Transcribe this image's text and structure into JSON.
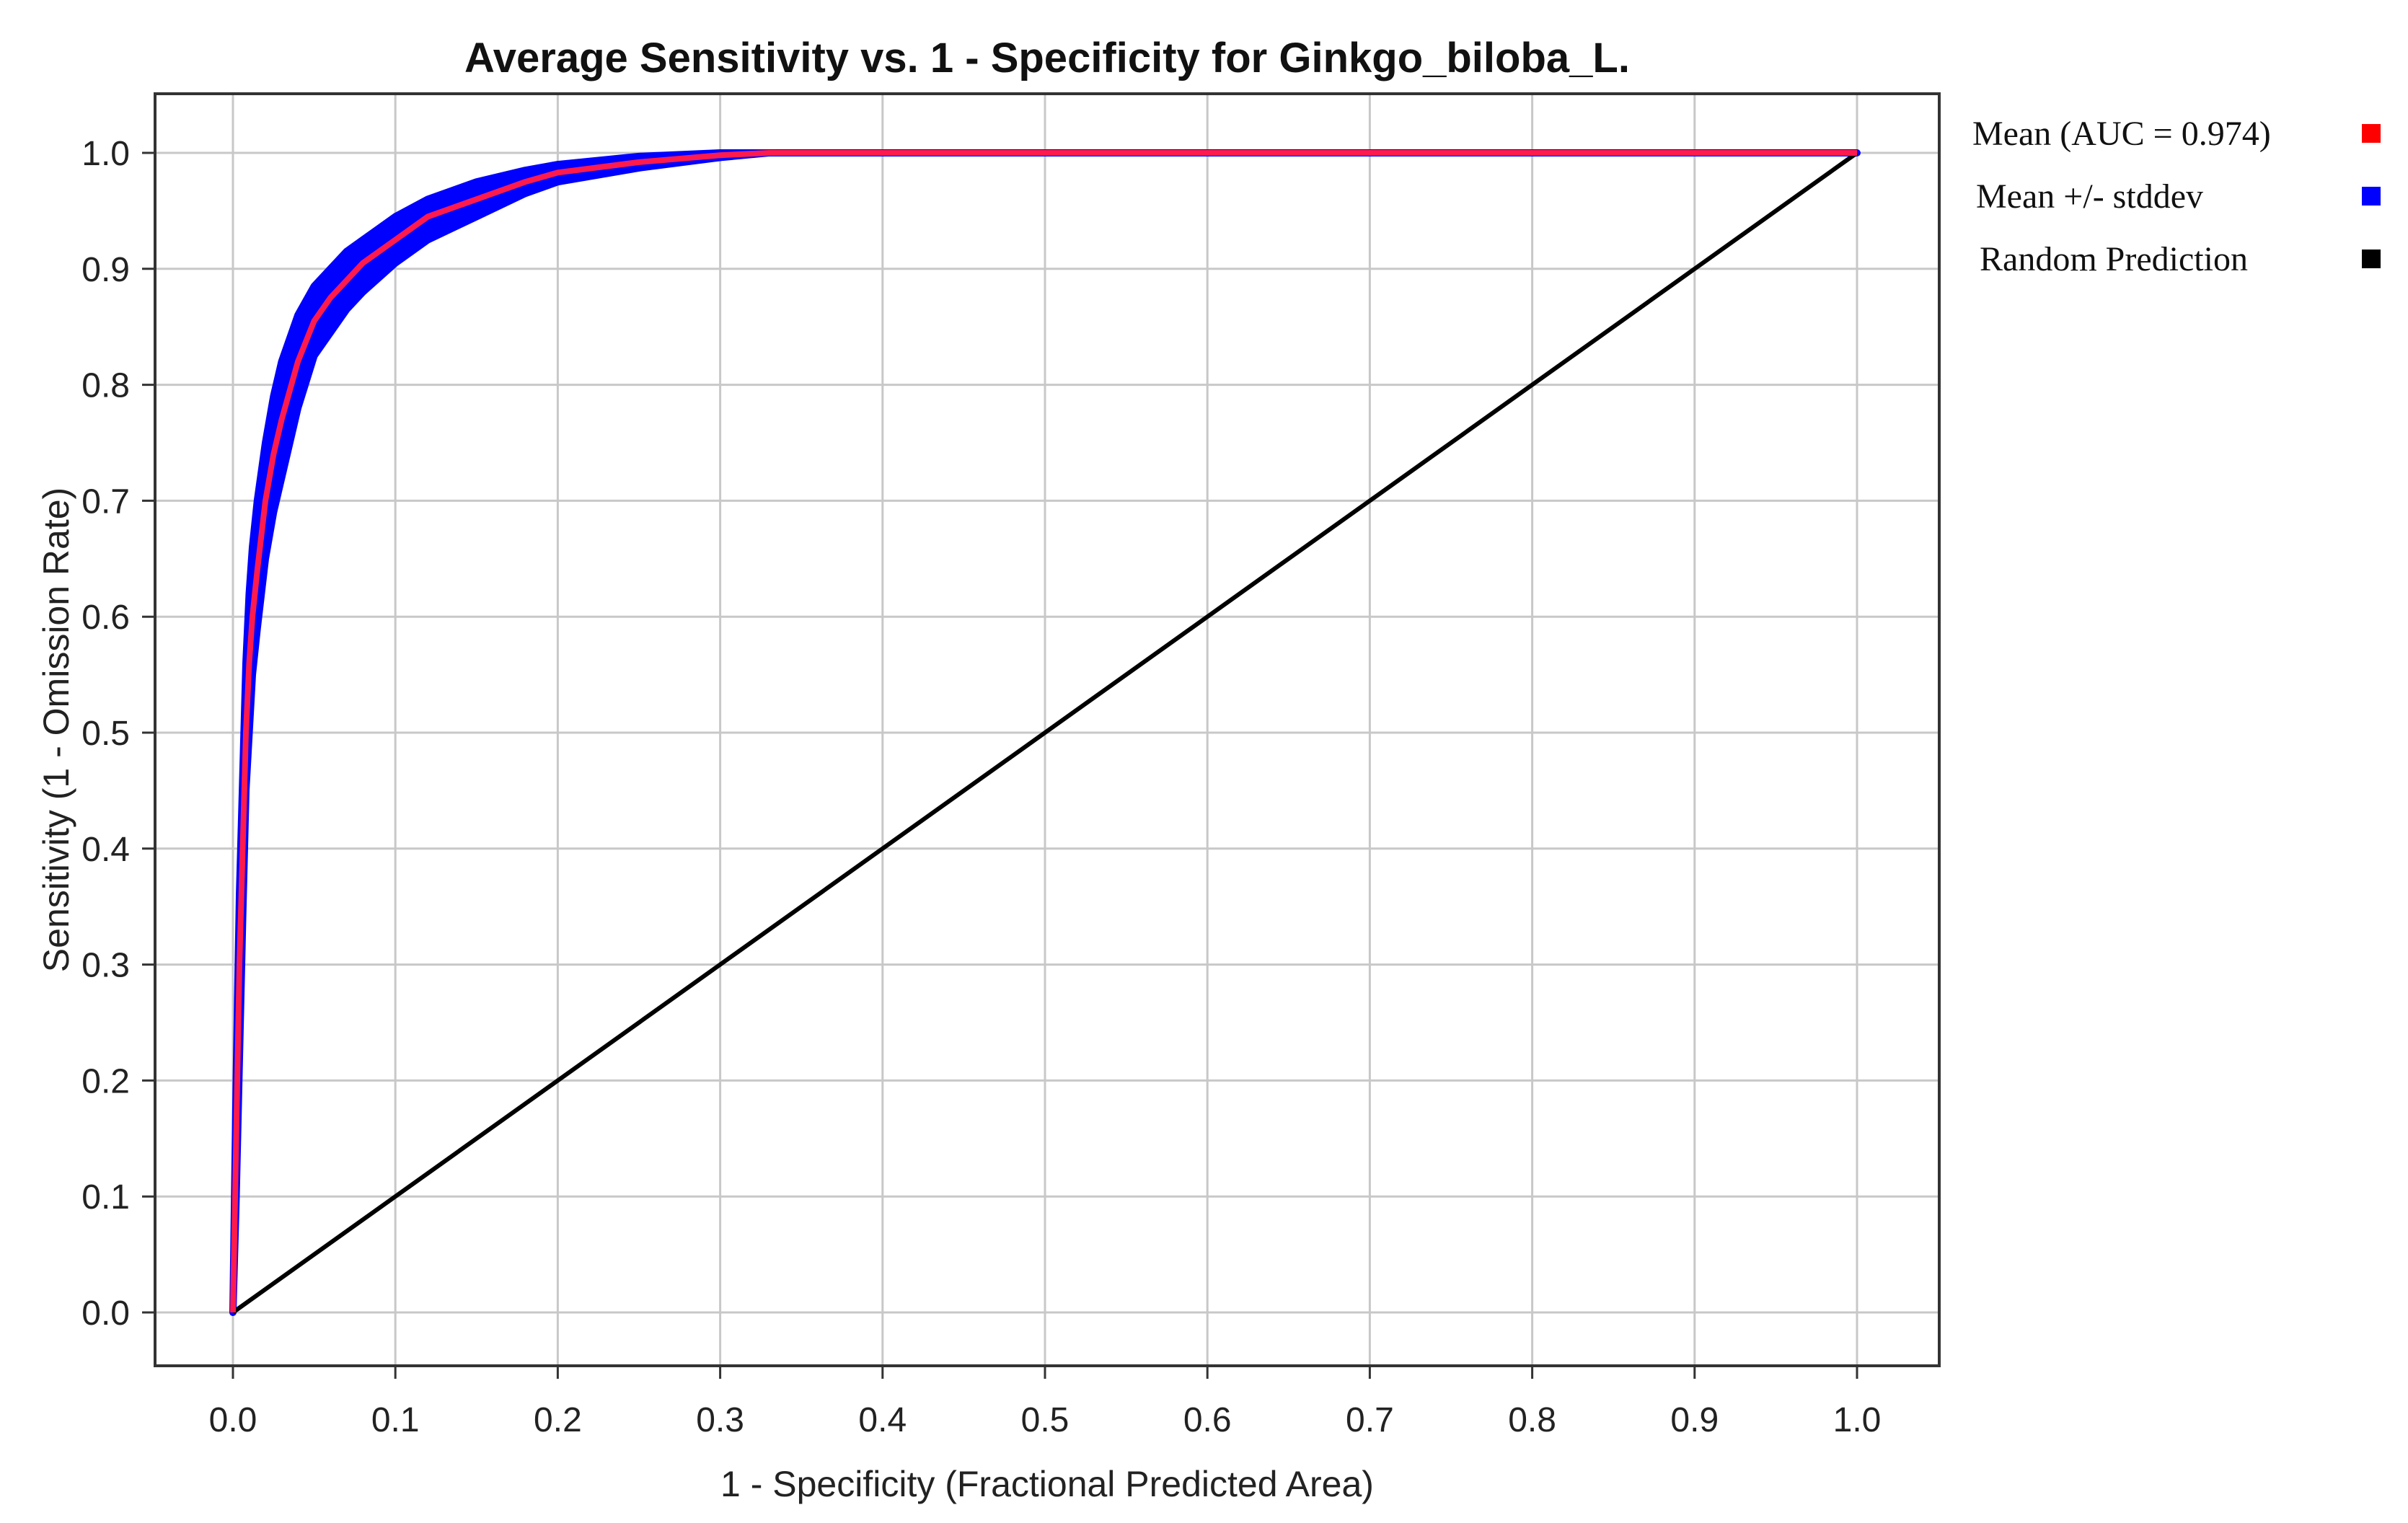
{
  "chart_data": {
    "type": "line",
    "title": "Average Sensitivity vs. 1 - Specificity for Ginkgo_biloba_L.",
    "xlabel": "1 - Specificity (Fractional Predicted Area)",
    "ylabel": "Sensitivity (1 - Omission Rate)",
    "xlim": [
      0,
      1
    ],
    "ylim": [
      0,
      1
    ],
    "x_ticks": [
      "0.0",
      "0.1",
      "0.2",
      "0.3",
      "0.4",
      "0.5",
      "0.6",
      "0.7",
      "0.8",
      "0.9",
      "1.0"
    ],
    "y_ticks": [
      "0.0",
      "0.1",
      "0.2",
      "0.3",
      "0.4",
      "0.5",
      "0.6",
      "0.7",
      "0.8",
      "0.9",
      "1.0"
    ],
    "grid": true,
    "legend_position": "right",
    "series": [
      {
        "name": "Mean (AUC = 0.974)",
        "color": "#ff0000",
        "points": [
          [
            0.0,
            0.0
          ],
          [
            0.002,
            0.15
          ],
          [
            0.004,
            0.3
          ],
          [
            0.006,
            0.4
          ],
          [
            0.008,
            0.5
          ],
          [
            0.01,
            0.56
          ],
          [
            0.012,
            0.6
          ],
          [
            0.015,
            0.64
          ],
          [
            0.02,
            0.7
          ],
          [
            0.025,
            0.74
          ],
          [
            0.03,
            0.77
          ],
          [
            0.04,
            0.82
          ],
          [
            0.05,
            0.855
          ],
          [
            0.06,
            0.875
          ],
          [
            0.07,
            0.89
          ],
          [
            0.08,
            0.905
          ],
          [
            0.1,
            0.925
          ],
          [
            0.12,
            0.945
          ],
          [
            0.15,
            0.96
          ],
          [
            0.18,
            0.975
          ],
          [
            0.2,
            0.983
          ],
          [
            0.25,
            0.992
          ],
          [
            0.3,
            0.998
          ],
          [
            0.33,
            1.0
          ],
          [
            1.0,
            1.0
          ]
        ]
      },
      {
        "name": "Mean +/- stddev",
        "color": "#0000ff",
        "upper": [
          [
            0.0,
            0.0
          ],
          [
            0.002,
            0.2
          ],
          [
            0.004,
            0.36
          ],
          [
            0.006,
            0.46
          ],
          [
            0.008,
            0.56
          ],
          [
            0.01,
            0.62
          ],
          [
            0.012,
            0.66
          ],
          [
            0.015,
            0.7
          ],
          [
            0.02,
            0.75
          ],
          [
            0.025,
            0.79
          ],
          [
            0.03,
            0.82
          ],
          [
            0.04,
            0.86
          ],
          [
            0.05,
            0.885
          ],
          [
            0.06,
            0.9
          ],
          [
            0.07,
            0.915
          ],
          [
            0.08,
            0.925
          ],
          [
            0.1,
            0.945
          ],
          [
            0.12,
            0.96
          ],
          [
            0.15,
            0.975
          ],
          [
            0.18,
            0.985
          ],
          [
            0.2,
            0.99
          ],
          [
            0.25,
            0.997
          ],
          [
            0.3,
            1.0
          ],
          [
            0.33,
            1.0
          ],
          [
            1.0,
            1.0
          ]
        ],
        "lower": [
          [
            0.0,
            0.0
          ],
          [
            0.002,
            0.1
          ],
          [
            0.004,
            0.22
          ],
          [
            0.006,
            0.34
          ],
          [
            0.008,
            0.45
          ],
          [
            0.01,
            0.5
          ],
          [
            0.012,
            0.55
          ],
          [
            0.015,
            0.59
          ],
          [
            0.02,
            0.65
          ],
          [
            0.025,
            0.69
          ],
          [
            0.03,
            0.72
          ],
          [
            0.04,
            0.78
          ],
          [
            0.05,
            0.825
          ],
          [
            0.06,
            0.845
          ],
          [
            0.07,
            0.865
          ],
          [
            0.08,
            0.88
          ],
          [
            0.1,
            0.905
          ],
          [
            0.12,
            0.925
          ],
          [
            0.15,
            0.945
          ],
          [
            0.18,
            0.965
          ],
          [
            0.2,
            0.975
          ],
          [
            0.25,
            0.987
          ],
          [
            0.3,
            0.996
          ],
          [
            0.33,
            1.0
          ],
          [
            1.0,
            1.0
          ]
        ]
      },
      {
        "name": "Random Prediction",
        "color": "#000000",
        "points": [
          [
            0.0,
            0.0
          ],
          [
            1.0,
            1.0
          ]
        ]
      }
    ]
  }
}
